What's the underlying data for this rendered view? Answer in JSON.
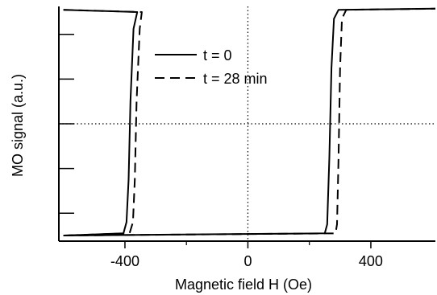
{
  "chart_data": {
    "type": "line",
    "title": "",
    "xlabel": "Magnetic field H (Oe)",
    "ylabel": "MO signal (a.u.)",
    "xlim": [
      -615,
      610
    ],
    "ylim": [
      -1.05,
      1.05
    ],
    "x_ticks": [
      -400,
      0,
      400
    ],
    "x_tick_labels": [
      "-400",
      "0",
      "400"
    ],
    "y_ticks": [
      -0.8,
      -0.4,
      0,
      0.4,
      0.8
    ],
    "y_tick_labels": [
      "",
      "",
      "",
      "",
      ""
    ],
    "reference_lines": {
      "x": 0,
      "y": 0,
      "style": "dotted"
    },
    "legend_placement": "top-center",
    "series": [
      {
        "name": "t = 0",
        "style": "solid",
        "descending_branch": [
          [
            -600,
            1.02
          ],
          [
            -360,
            1.0
          ],
          [
            -372,
            0.85
          ],
          [
            -382,
            0.2
          ],
          [
            -388,
            -0.5
          ],
          [
            -395,
            -0.88
          ],
          [
            -405,
            -0.98
          ],
          [
            -600,
            -1.0
          ]
        ],
        "ascending_branch": [
          [
            -600,
            -1.0
          ],
          [
            250,
            -0.98
          ],
          [
            258,
            -0.9
          ],
          [
            265,
            -0.3
          ],
          [
            272,
            0.5
          ],
          [
            280,
            0.94
          ],
          [
            295,
            1.02
          ],
          [
            610,
            1.03
          ]
        ]
      },
      {
        "name": "t = 28 min",
        "style": "dashed",
        "descending_branch": [
          [
            -600,
            1.02
          ],
          [
            -345,
            1.0
          ],
          [
            -352,
            0.85
          ],
          [
            -362,
            0.2
          ],
          [
            -368,
            -0.5
          ],
          [
            -374,
            -0.88
          ],
          [
            -385,
            -0.98
          ],
          [
            -600,
            -1.0
          ]
        ],
        "ascending_branch": [
          [
            -600,
            -1.0
          ],
          [
            285,
            -0.98
          ],
          [
            290,
            -0.9
          ],
          [
            295,
            -0.3
          ],
          [
            300,
            0.5
          ],
          [
            306,
            0.94
          ],
          [
            320,
            1.02
          ],
          [
            610,
            1.03
          ]
        ]
      }
    ]
  }
}
